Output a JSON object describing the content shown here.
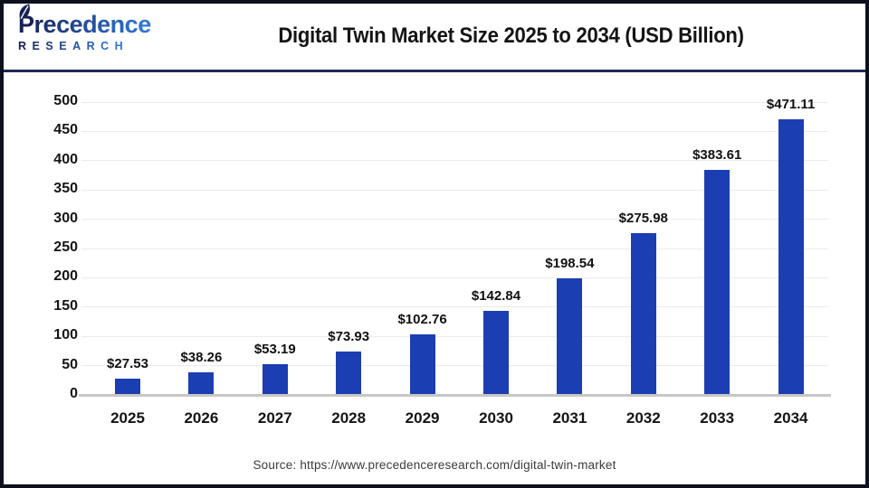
{
  "header": {
    "logo": {
      "line1": "Precedence",
      "line2": "RESEARCH"
    },
    "title": "Digital Twin Market Size 2025 to 2034 (USD Billion)"
  },
  "chart_data": {
    "type": "bar",
    "title": "Digital Twin Market Size 2025 to 2034 (USD Billion)",
    "categories": [
      "2025",
      "2026",
      "2027",
      "2028",
      "2029",
      "2030",
      "2031",
      "2032",
      "2033",
      "2034"
    ],
    "values": [
      27.53,
      38.26,
      53.19,
      73.93,
      102.76,
      142.84,
      198.54,
      275.98,
      383.61,
      471.11
    ],
    "value_labels": [
      "$27.53",
      "$38.26",
      "$53.19",
      "$73.93",
      "$102.76",
      "$142.84",
      "$198.54",
      "$275.98",
      "$383.61",
      "$471.11"
    ],
    "xlabel": "",
    "ylabel": "",
    "ylim": [
      0,
      500
    ],
    "yticks": [
      0,
      50,
      100,
      150,
      200,
      250,
      300,
      350,
      400,
      450,
      500
    ],
    "grid": true,
    "legend": false,
    "bar_color": "#1b3eb3",
    "gridline_color": "#ebebeb",
    "axis_line_color": "#c7c7c7",
    "logo_color_start": "#182156",
    "logo_color_end": "#2f77d4"
  },
  "footer": {
    "source": "Source: https://www.precedenceresearch.com/digital-twin-market"
  }
}
